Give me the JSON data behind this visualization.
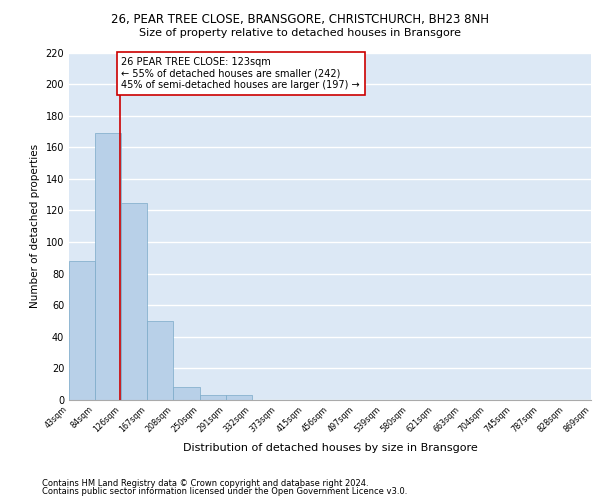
{
  "title1": "26, PEAR TREE CLOSE, BRANSGORE, CHRISTCHURCH, BH23 8NH",
  "title2": "Size of property relative to detached houses in Bransgore",
  "xlabel": "Distribution of detached houses by size in Bransgore",
  "ylabel": "Number of detached properties",
  "bar_edges": [
    43,
    84,
    126,
    167,
    208,
    250,
    291,
    332,
    373,
    415,
    456,
    497,
    539,
    580,
    621,
    663,
    704,
    745,
    787,
    828,
    869
  ],
  "bar_heights": [
    88,
    169,
    125,
    50,
    8,
    3,
    3,
    0,
    0,
    0,
    0,
    0,
    0,
    0,
    0,
    0,
    0,
    0,
    0,
    0
  ],
  "bar_color": "#b8d0e8",
  "bar_edge_color": "#7aaac8",
  "vline_x": 123,
  "vline_color": "#cc0000",
  "annotation_text": "26 PEAR TREE CLOSE: 123sqm\n← 55% of detached houses are smaller (242)\n45% of semi-detached houses are larger (197) →",
  "annotation_box_color": "#ffffff",
  "annotation_box_edge": "#cc0000",
  "bg_color": "#dce8f5",
  "grid_color": "#ffffff",
  "footnote1": "Contains HM Land Registry data © Crown copyright and database right 2024.",
  "footnote2": "Contains public sector information licensed under the Open Government Licence v3.0.",
  "ylim": [
    0,
    220
  ],
  "yticks": [
    0,
    20,
    40,
    60,
    80,
    100,
    120,
    140,
    160,
    180,
    200,
    220
  ],
  "title1_fontsize": 8.5,
  "title2_fontsize": 8.0,
  "ylabel_fontsize": 7.5,
  "xlabel_fontsize": 8.0,
  "ytick_fontsize": 7.0,
  "xtick_fontsize": 5.8,
  "footnote_fontsize": 6.0,
  "annotation_fontsize": 7.0
}
